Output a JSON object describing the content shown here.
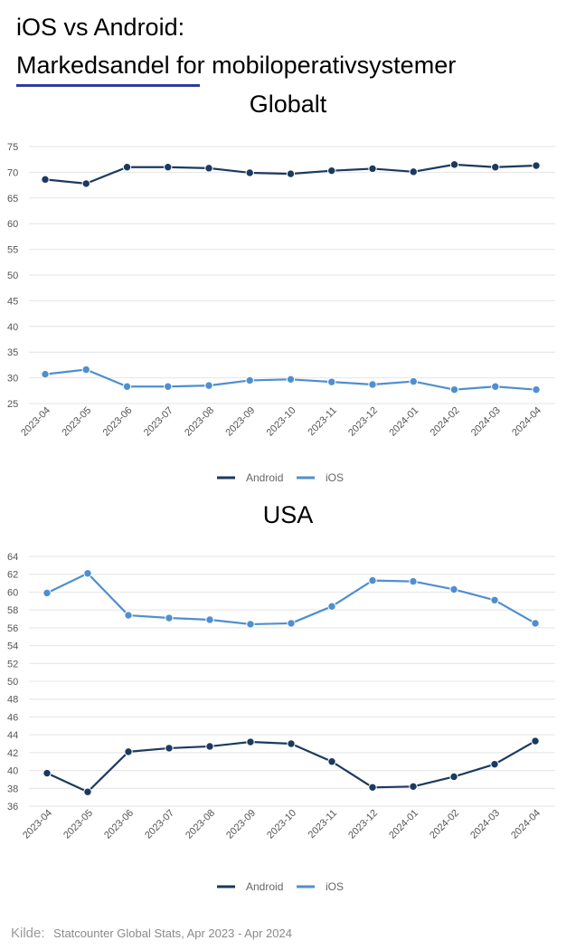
{
  "header": {
    "title_line1": "iOS vs Android:",
    "title_line2": "Markedsandel for mobiloperativsystemer"
  },
  "colors": {
    "android": "#1b3a5e",
    "ios": "#4f8fcf",
    "grid": "#e4e4e4",
    "underline": "#2e3c9e"
  },
  "chart_data": [
    {
      "type": "line",
      "title": "Globalt",
      "categories": [
        "2023-04",
        "2023-05",
        "2023-06",
        "2023-07",
        "2023-08",
        "2023-09",
        "2023-10",
        "2023-11",
        "2023-12",
        "2024-01",
        "2024-02",
        "2024-03",
        "2024-04"
      ],
      "yticks": [
        25,
        30,
        35,
        40,
        45,
        50,
        55,
        60,
        65,
        70,
        75
      ],
      "ylim": [
        25,
        75
      ],
      "series": [
        {
          "name": "Android",
          "values": [
            68.6,
            67.8,
            71.0,
            71.0,
            70.8,
            69.9,
            69.7,
            70.3,
            70.7,
            70.1,
            71.5,
            71.0,
            71.3
          ]
        },
        {
          "name": "iOS",
          "values": [
            30.7,
            31.6,
            28.3,
            28.3,
            28.5,
            29.5,
            29.7,
            29.2,
            28.7,
            29.3,
            27.7,
            28.3,
            27.7
          ]
        }
      ],
      "legend": [
        "Android",
        "iOS"
      ],
      "xlabel": "",
      "ylabel": ""
    },
    {
      "type": "line",
      "title": "USA",
      "categories": [
        "2023-04",
        "2023-05",
        "2023-06",
        "2023-07",
        "2023-08",
        "2023-09",
        "2023-10",
        "2023-11",
        "2023-12",
        "2024-01",
        "2024-02",
        "2024-03",
        "2024-04"
      ],
      "yticks": [
        36,
        38,
        40,
        42,
        44,
        46,
        48,
        50,
        52,
        54,
        56,
        58,
        60,
        62,
        64
      ],
      "ylim": [
        36,
        64
      ],
      "series": [
        {
          "name": "Android",
          "values": [
            39.7,
            37.6,
            42.1,
            42.5,
            42.7,
            43.2,
            43.0,
            41.0,
            38.1,
            38.2,
            39.3,
            40.7,
            43.3
          ]
        },
        {
          "name": "iOS",
          "values": [
            59.9,
            62.1,
            57.4,
            57.1,
            56.9,
            56.4,
            56.5,
            58.4,
            61.3,
            61.2,
            60.3,
            59.1,
            56.5
          ]
        }
      ],
      "legend": [
        "Android",
        "iOS"
      ],
      "xlabel": "",
      "ylabel": ""
    }
  ],
  "footer": {
    "source_label": "Kilde:",
    "source_text": "Statcounter Global Stats, Apr 2023 - Apr 2024"
  }
}
